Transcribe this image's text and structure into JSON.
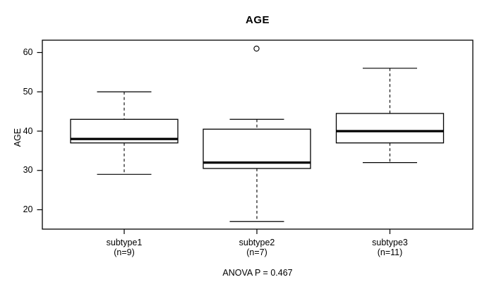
{
  "title": "AGE",
  "y_axis": {
    "label": "AGE",
    "tick_labels": [
      "60",
      "50",
      "40",
      "30",
      "20"
    ]
  },
  "x_axis": {
    "categories": [
      {
        "label": "subtype1",
        "sublabel": "(n=9)"
      },
      {
        "label": "subtype2",
        "sublabel": "(n=7)"
      },
      {
        "label": "subtype3",
        "sublabel": "(n=11)"
      }
    ]
  },
  "footer": {
    "annotation": "ANOVA P = 0.467"
  },
  "colors": {
    "line": "#000000",
    "background": "#ffffff",
    "box_fill": "#ffffff"
  },
  "chart_data": {
    "type": "boxplot",
    "title": "AGE",
    "ylabel": "AGE",
    "xlabel": "",
    "y_ticks": [
      20,
      30,
      40,
      50,
      60
    ],
    "ylim": [
      15.5,
      63
    ],
    "grid": false,
    "legend_position": "none",
    "categories": [
      "subtype1",
      "subtype2",
      "subtype3"
    ],
    "sample_sizes": [
      9,
      7,
      11
    ],
    "series": [
      {
        "name": "subtype1",
        "n": 9,
        "whisker_low": 29,
        "q1": 37,
        "median": 38,
        "q3": 43,
        "whisker_high": 50,
        "outliers": []
      },
      {
        "name": "subtype2",
        "n": 7,
        "whisker_low": 17,
        "q1": 30.5,
        "median": 32,
        "q3": 40.5,
        "whisker_high": 43,
        "outliers": [
          61
        ]
      },
      {
        "name": "subtype3",
        "n": 11,
        "whisker_low": 32,
        "q1": 37,
        "median": 40,
        "q3": 44.5,
        "whisker_high": 56,
        "outliers": []
      }
    ],
    "annotation": "ANOVA P = 0.467"
  }
}
